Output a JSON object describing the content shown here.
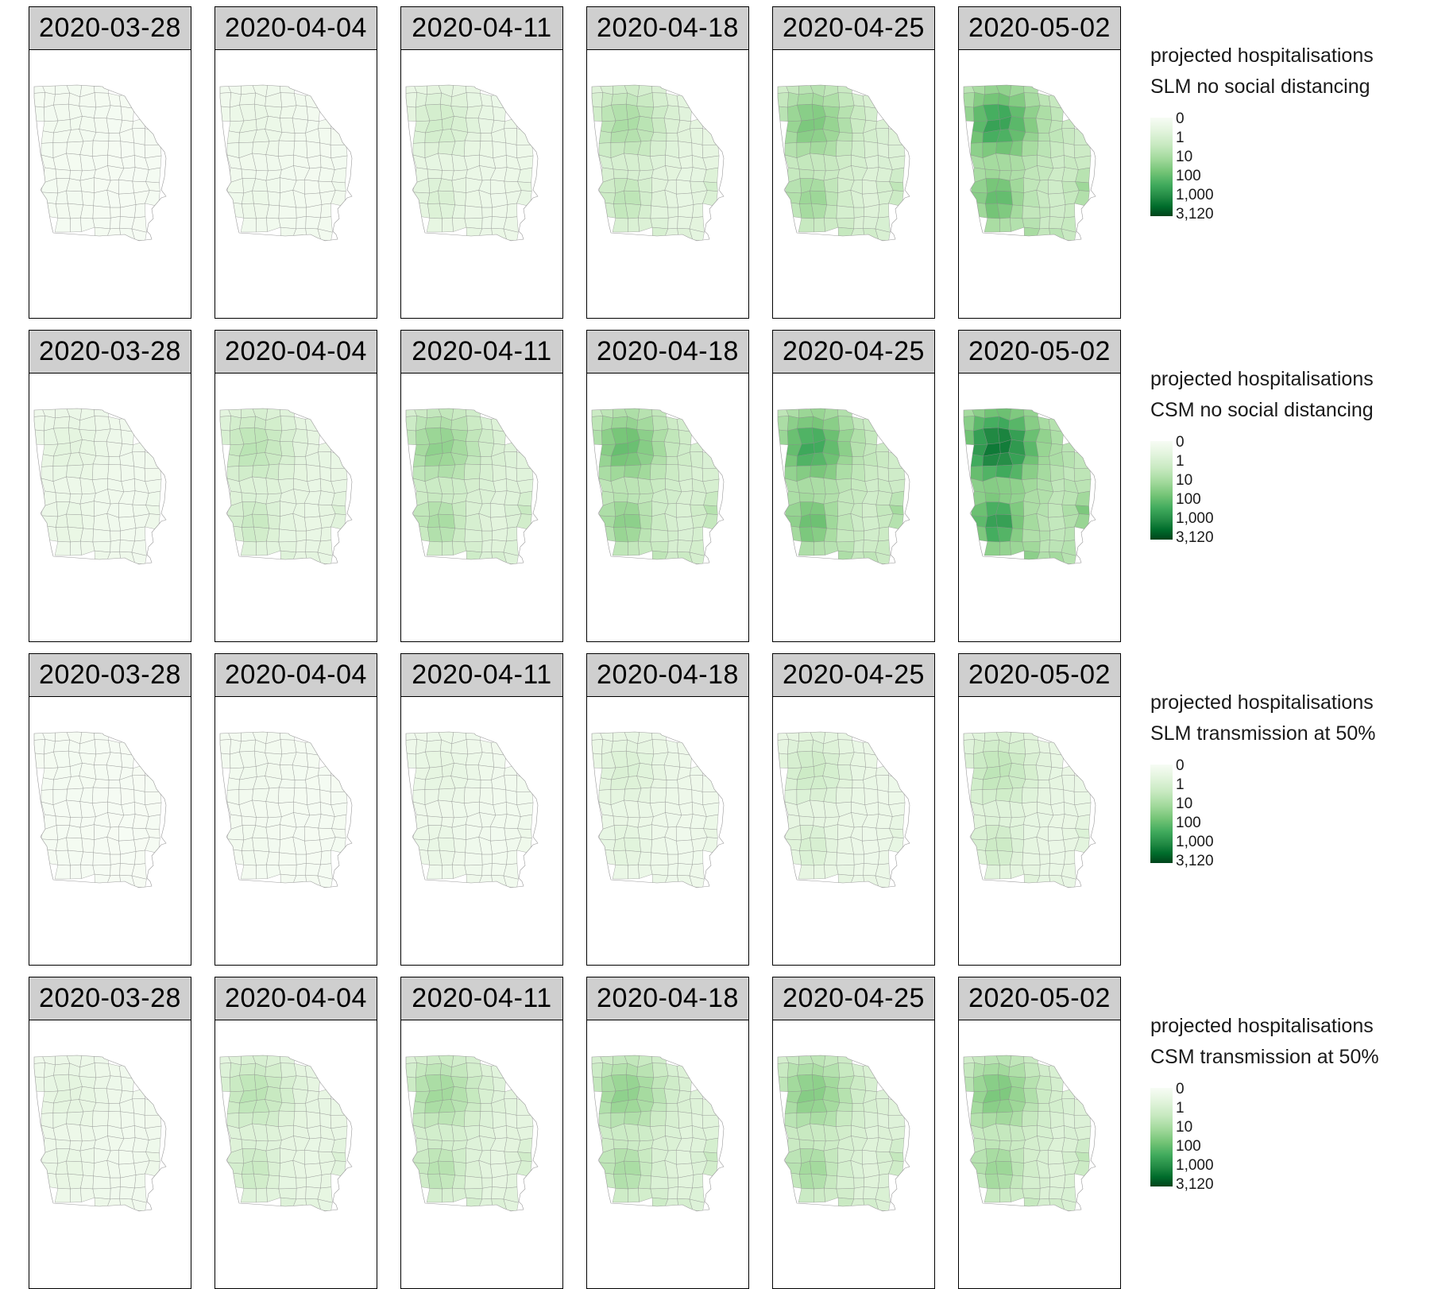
{
  "figure": {
    "dates": [
      "2020-03-28",
      "2020-04-04",
      "2020-04-11",
      "2020-04-18",
      "2020-04-25",
      "2020-05-02"
    ],
    "legend_ticks": [
      "0",
      "1",
      "10",
      "100",
      "1,000",
      "3,120"
    ],
    "colors": [
      "#f7fcf5",
      "#e5f5e0",
      "#c7e9c0",
      "#a1d99b",
      "#74c476",
      "#41ab5d",
      "#238b45",
      "#006d2c",
      "#00441b"
    ],
    "rows": [
      {
        "legend_title": "projected hospitalisations",
        "legend_subtitle": "SLM no social distancing",
        "overall_level": [
          0.03,
          0.07,
          0.16,
          0.26,
          0.36,
          0.5
        ]
      },
      {
        "legend_title": "projected hospitalisations",
        "legend_subtitle": "CSM no social distancing",
        "overall_level": [
          0.1,
          0.22,
          0.32,
          0.4,
          0.48,
          0.62
        ]
      },
      {
        "legend_title": "projected hospitalisations",
        "legend_subtitle": "SLM transmission at 50%",
        "overall_level": [
          0.02,
          0.04,
          0.09,
          0.13,
          0.17,
          0.21
        ]
      },
      {
        "legend_title": "projected hospitalisations",
        "legend_subtitle": "CSM transmission at 50%",
        "overall_level": [
          0.1,
          0.22,
          0.28,
          0.32,
          0.34,
          0.36
        ]
      }
    ]
  }
}
